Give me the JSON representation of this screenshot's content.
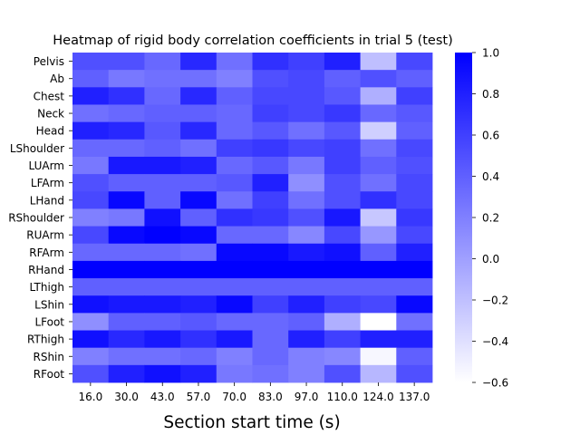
{
  "chart_data": {
    "type": "heatmap",
    "title": "Heatmap of rigid body correlation coefficients in trial 5 (test)",
    "xlabel": "Section start time (s)",
    "ylabel": "",
    "x_categories": [
      "16.0",
      "30.0",
      "43.0",
      "57.0",
      "70.0",
      "83.0",
      "97.0",
      "110.0",
      "124.0",
      "137.0"
    ],
    "y_categories": [
      "Pelvis",
      "Ab",
      "Chest",
      "Neck",
      "Head",
      "LShoulder",
      "LUArm",
      "LFArm",
      "LHand",
      "RShoulder",
      "RUArm",
      "RFArm",
      "RHand",
      "LThigh",
      "LShin",
      "LFoot",
      "RThigh",
      "RShin",
      "RFoot"
    ],
    "values": [
      [
        0.5,
        0.5,
        0.35,
        0.75,
        0.3,
        0.7,
        0.6,
        0.8,
        -0.2,
        0.55
      ],
      [
        0.4,
        0.25,
        0.3,
        0.3,
        0.2,
        0.5,
        0.55,
        0.4,
        0.5,
        0.4
      ],
      [
        0.8,
        0.7,
        0.35,
        0.75,
        0.4,
        0.55,
        0.55,
        0.45,
        -0.1,
        0.6
      ],
      [
        0.3,
        0.35,
        0.4,
        0.4,
        0.35,
        0.6,
        0.55,
        0.65,
        0.35,
        0.45
      ],
      [
        0.8,
        0.75,
        0.45,
        0.75,
        0.35,
        0.45,
        0.3,
        0.45,
        -0.3,
        0.4
      ],
      [
        0.35,
        0.35,
        0.4,
        0.3,
        0.6,
        0.65,
        0.55,
        0.6,
        0.3,
        0.55
      ],
      [
        0.25,
        0.85,
        0.85,
        0.8,
        0.35,
        0.45,
        0.25,
        0.6,
        0.4,
        0.5
      ],
      [
        0.5,
        0.4,
        0.4,
        0.4,
        0.45,
        0.8,
        0.1,
        0.5,
        0.3,
        0.55
      ],
      [
        0.55,
        0.95,
        0.4,
        0.95,
        0.3,
        0.6,
        0.3,
        0.5,
        0.7,
        0.55
      ],
      [
        0.2,
        0.25,
        0.9,
        0.4,
        0.7,
        0.65,
        0.5,
        0.85,
        -0.25,
        0.65
      ],
      [
        0.55,
        0.95,
        1.0,
        0.95,
        0.35,
        0.35,
        0.15,
        0.55,
        0.05,
        0.55
      ],
      [
        0.35,
        0.35,
        0.35,
        0.3,
        0.95,
        0.95,
        0.85,
        0.9,
        0.4,
        0.8
      ],
      [
        1.0,
        1.0,
        1.0,
        1.0,
        1.0,
        1.0,
        1.0,
        1.0,
        1.0,
        1.0
      ],
      [
        0.4,
        0.4,
        0.4,
        0.4,
        0.4,
        0.4,
        0.4,
        0.4,
        0.4,
        0.4
      ],
      [
        0.9,
        0.85,
        0.85,
        0.8,
        0.95,
        0.6,
        0.8,
        0.6,
        0.55,
        0.95
      ],
      [
        0.1,
        0.4,
        0.4,
        0.45,
        0.35,
        0.35,
        0.4,
        -0.1,
        -0.6,
        0.3
      ],
      [
        0.9,
        0.75,
        0.85,
        0.7,
        0.85,
        0.35,
        0.8,
        0.6,
        0.8,
        0.8
      ],
      [
        0.2,
        0.3,
        0.3,
        0.35,
        0.2,
        0.35,
        0.2,
        0.15,
        -0.55,
        0.4
      ],
      [
        0.5,
        0.8,
        0.9,
        0.8,
        0.25,
        0.3,
        0.2,
        0.5,
        -0.15,
        0.5
      ]
    ],
    "colorbar": {
      "vmin": -0.6,
      "vmax": 1.0,
      "ticks": [
        1.0,
        0.8,
        0.6,
        0.4,
        0.2,
        0.0,
        -0.2,
        -0.4,
        -0.6
      ],
      "tick_labels": [
        "1.0",
        "0.8",
        "0.6",
        "0.4",
        "0.2",
        "0.0",
        "−0.2",
        "−0.4",
        "−0.6"
      ],
      "low_color": "#ffffff",
      "high_color": "#0000ff"
    }
  }
}
